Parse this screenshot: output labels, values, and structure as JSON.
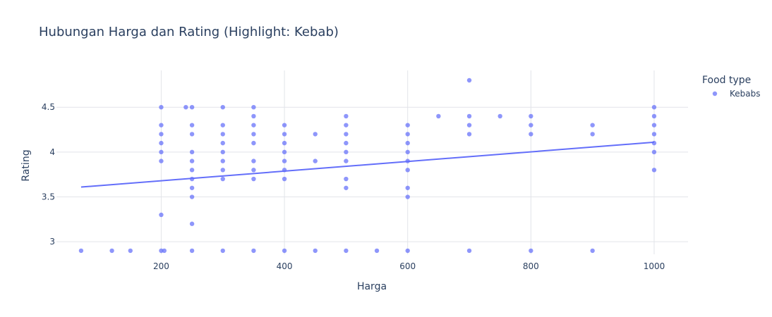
{
  "chart_data": {
    "type": "scatter",
    "title": "Hubungan Harga dan Rating (Highlight: Kebab)",
    "xlabel": "Harga",
    "ylabel": "Rating",
    "xlim": [
      30,
      1055
    ],
    "ylim": [
      2.86,
      4.91
    ],
    "xticks": [
      200,
      400,
      600,
      800,
      1000
    ],
    "yticks": [
      3,
      3.5,
      4,
      4.5
    ],
    "ytick_labels": [
      "3",
      "3.5",
      "4",
      "4.5"
    ],
    "grid": true,
    "legend": {
      "title": "Food type",
      "placement": "top-right"
    },
    "colors": {
      "marker": "#636efa",
      "trend": "#636efa",
      "grid": "#e2e4e9",
      "text": "#2a3f5f"
    },
    "series": [
      {
        "name": "Kebabs",
        "points": [
          [
            70,
            2.9
          ],
          [
            120,
            2.9
          ],
          [
            150,
            2.9
          ],
          [
            200,
            2.9
          ],
          [
            205,
            2.9
          ],
          [
            250,
            2.9
          ],
          [
            300,
            2.9
          ],
          [
            350,
            2.9
          ],
          [
            400,
            2.9
          ],
          [
            450,
            2.9
          ],
          [
            500,
            2.9
          ],
          [
            550,
            2.9
          ],
          [
            600,
            2.9
          ],
          [
            700,
            2.9
          ],
          [
            800,
            2.9
          ],
          [
            900,
            2.9
          ],
          [
            200,
            3.3
          ],
          [
            200,
            3.9
          ],
          [
            200,
            4.0
          ],
          [
            200,
            4.1
          ],
          [
            200,
            4.2
          ],
          [
            200,
            4.3
          ],
          [
            200,
            4.5
          ],
          [
            240,
            4.5
          ],
          [
            250,
            3.2
          ],
          [
            250,
            3.5
          ],
          [
            250,
            3.6
          ],
          [
            250,
            3.7
          ],
          [
            250,
            3.8
          ],
          [
            250,
            3.9
          ],
          [
            250,
            4.0
          ],
          [
            250,
            4.2
          ],
          [
            250,
            4.3
          ],
          [
            250,
            4.5
          ],
          [
            300,
            3.7
          ],
          [
            300,
            3.8
          ],
          [
            300,
            3.9
          ],
          [
            300,
            4.0
          ],
          [
            300,
            4.1
          ],
          [
            300,
            4.2
          ],
          [
            300,
            4.3
          ],
          [
            300,
            4.5
          ],
          [
            350,
            3.7
          ],
          [
            350,
            3.8
          ],
          [
            350,
            3.9
          ],
          [
            350,
            4.1
          ],
          [
            350,
            4.2
          ],
          [
            350,
            4.3
          ],
          [
            350,
            4.4
          ],
          [
            350,
            4.5
          ],
          [
            400,
            3.7
          ],
          [
            400,
            3.8
          ],
          [
            400,
            3.9
          ],
          [
            400,
            4.0
          ],
          [
            400,
            4.1
          ],
          [
            400,
            4.2
          ],
          [
            400,
            4.3
          ],
          [
            450,
            3.9
          ],
          [
            450,
            4.2
          ],
          [
            500,
            3.6
          ],
          [
            500,
            3.7
          ],
          [
            500,
            3.9
          ],
          [
            500,
            4.0
          ],
          [
            500,
            4.1
          ],
          [
            500,
            4.2
          ],
          [
            500,
            4.3
          ],
          [
            500,
            4.4
          ],
          [
            600,
            3.5
          ],
          [
            600,
            3.6
          ],
          [
            600,
            3.8
          ],
          [
            600,
            3.9
          ],
          [
            600,
            4.0
          ],
          [
            600,
            4.1
          ],
          [
            600,
            4.2
          ],
          [
            600,
            4.3
          ],
          [
            650,
            4.4
          ],
          [
            700,
            4.2
          ],
          [
            700,
            4.3
          ],
          [
            700,
            4.4
          ],
          [
            700,
            4.8
          ],
          [
            750,
            4.4
          ],
          [
            800,
            4.2
          ],
          [
            800,
            4.3
          ],
          [
            800,
            4.4
          ],
          [
            900,
            4.2
          ],
          [
            900,
            4.3
          ],
          [
            1000,
            3.8
          ],
          [
            1000,
            4.0
          ],
          [
            1000,
            4.1
          ],
          [
            1000,
            4.2
          ],
          [
            1000,
            4.3
          ],
          [
            1000,
            4.4
          ],
          [
            1000,
            4.5
          ]
        ]
      }
    ],
    "trendline": {
      "x": [
        70,
        1000
      ],
      "y": [
        3.61,
        4.11
      ]
    }
  }
}
